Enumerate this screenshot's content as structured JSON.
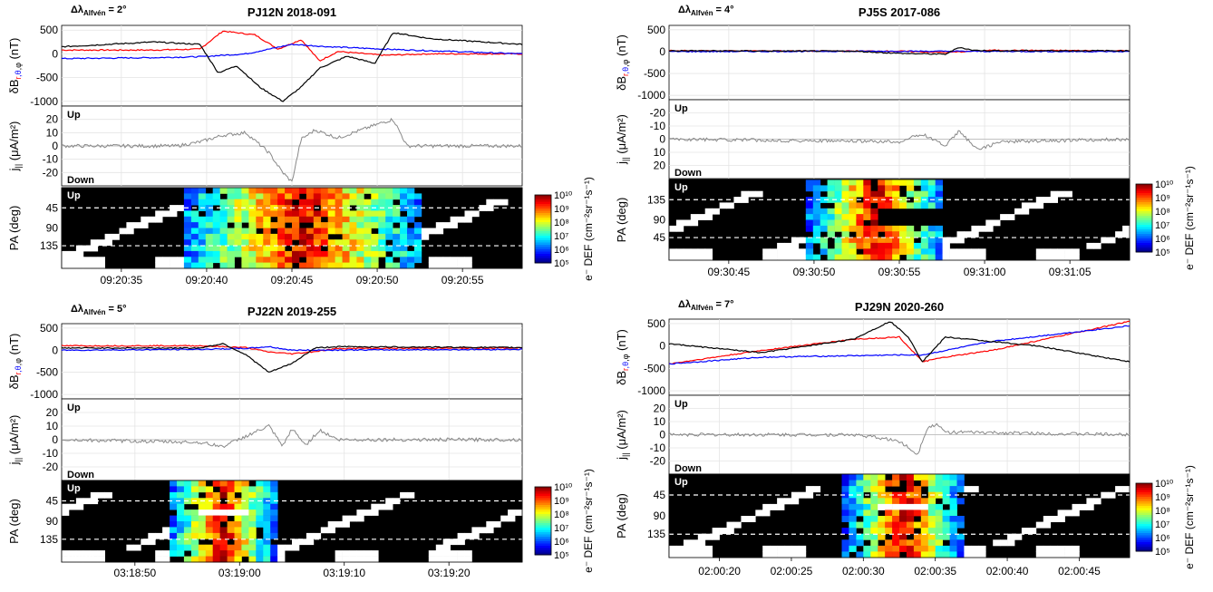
{
  "figure_labels": {
    "delta_prefix": "Δλ",
    "delta_sub": "Alfvén",
    "ylabel_db": "δB",
    "ylabel_db_unit": "(nT)",
    "ylabel_j": "j",
    "ylabel_j_unit": "(μA/m²)",
    "ylabel_pa": "PA (deg)",
    "up": "Up",
    "down": "Down",
    "colorbar_label": "e⁻ DEF (cm⁻²sr⁻¹s⁻¹)",
    "colorbar_ticks": [
      "10¹⁰",
      "10⁹",
      "10⁸",
      "10⁷",
      "10⁶",
      "10⁵"
    ]
  },
  "colors": {
    "r": "#ff0000",
    "theta": "#0000ff",
    "phi": "#000000",
    "j": "#888888"
  },
  "chart_data": [
    {
      "id": "pj12n",
      "type": "line",
      "title": "PJ12N 2018-091",
      "delta_alfven": "2°",
      "x_ticks": [
        "09:20:35",
        "09:20:40",
        "09:20:45",
        "09:20:50",
        "09:20:55"
      ],
      "db": {
        "ylim": [
          -1100,
          600
        ],
        "yticks": [
          "500",
          "0",
          "-500",
          "-1000"
        ],
        "series": [
          {
            "component": "r",
            "color": "#ff0000",
            "x": [
              0,
              0.2,
              0.3,
              0.35,
              0.42,
              0.47,
              0.52,
              0.56,
              0.6,
              0.7,
              0.8,
              1
            ],
            "values": [
              80,
              80,
              100,
              480,
              400,
              100,
              300,
              -150,
              50,
              -30,
              0,
              0
            ]
          },
          {
            "component": "theta",
            "color": "#0000ff",
            "x": [
              0,
              0.2,
              0.3,
              0.4,
              0.5,
              0.58,
              0.7,
              0.85,
              1
            ],
            "values": [
              -100,
              -80,
              -60,
              0,
              200,
              150,
              100,
              50,
              0
            ]
          },
          {
            "component": "phi",
            "color": "#000000",
            "x": [
              0,
              0.2,
              0.3,
              0.34,
              0.38,
              0.43,
              0.48,
              0.52,
              0.56,
              0.62,
              0.68,
              0.72,
              0.8,
              1
            ],
            "values": [
              150,
              250,
              200,
              -400,
              -250,
              -700,
              -1000,
              -700,
              -300,
              -50,
              -200,
              450,
              320,
              200
            ]
          }
        ]
      },
      "j": {
        "ylim": [
          -30,
          30
        ],
        "yticks": [
          "20",
          "10",
          "0",
          "-10",
          "-20"
        ],
        "x": [
          0,
          0.25,
          0.3,
          0.35,
          0.4,
          0.45,
          0.48,
          0.5,
          0.52,
          0.55,
          0.6,
          0.7,
          0.72,
          0.75,
          1
        ],
        "values": [
          0,
          0,
          3,
          8,
          10,
          -5,
          -20,
          -27,
          5,
          12,
          6,
          18,
          20,
          0,
          0
        ]
      },
      "pa": {
        "up_is_top": true,
        "yticks": [
          "45",
          "90",
          "135"
        ],
        "active_x": [
          0.29,
          0.76
        ]
      }
    },
    {
      "id": "pj5s",
      "type": "line",
      "title": "PJ5S 2017-086",
      "delta_alfven": "4°",
      "x_ticks": [
        "09:30:45",
        "09:30:50",
        "09:30:55",
        "09:31:00",
        "09:31:05"
      ],
      "db": {
        "ylim": [
          -1100,
          600
        ],
        "yticks": [
          "500",
          "0",
          "-500",
          "-1000"
        ],
        "series": [
          {
            "component": "r",
            "color": "#ff0000",
            "x": [
              0,
              0.5,
              0.6,
              0.7,
              1
            ],
            "values": [
              20,
              10,
              -20,
              30,
              20
            ]
          },
          {
            "component": "theta",
            "color": "#0000ff",
            "x": [
              0,
              0.5,
              1
            ],
            "values": [
              0,
              10,
              0
            ]
          },
          {
            "component": "phi",
            "color": "#000000",
            "x": [
              0,
              0.4,
              0.5,
              0.6,
              0.63,
              0.66,
              0.7,
              1
            ],
            "values": [
              20,
              10,
              -40,
              -60,
              100,
              30,
              20,
              20
            ]
          }
        ]
      },
      "j": {
        "ylim": [
          -30,
          30
        ],
        "yticks": [
          "-20",
          "-10",
          "0",
          "10",
          "20"
        ],
        "x": [
          0,
          0.5,
          0.55,
          0.6,
          0.63,
          0.67,
          0.72,
          1
        ],
        "values": [
          0,
          2,
          -4,
          5,
          -6,
          8,
          2,
          0
        ]
      },
      "pa": {
        "up_is_top": false,
        "yticks": [
          "135",
          "90",
          "45"
        ],
        "active_x": [
          0.32,
          0.58
        ]
      }
    },
    {
      "id": "pj22n",
      "type": "line",
      "title": "PJ22N 2019-255",
      "delta_alfven": "5°",
      "x_ticks": [
        "03:18:50",
        "03:19:00",
        "03:19:10",
        "03:19:20"
      ],
      "db": {
        "ylim": [
          -1100,
          600
        ],
        "yticks": [
          "500",
          "0",
          "-500",
          "-1000"
        ],
        "series": [
          {
            "component": "r",
            "color": "#ff0000",
            "x": [
              0,
              0.3,
              0.4,
              0.45,
              0.5,
              0.55,
              0.6,
              1
            ],
            "values": [
              100,
              100,
              60,
              -40,
              -80,
              -30,
              40,
              50
            ]
          },
          {
            "component": "theta",
            "color": "#0000ff",
            "x": [
              0,
              0.3,
              0.4,
              0.45,
              0.5,
              1
            ],
            "values": [
              0,
              20,
              40,
              80,
              0,
              20
            ]
          },
          {
            "component": "phi",
            "color": "#000000",
            "x": [
              0,
              0.3,
              0.35,
              0.4,
              0.45,
              0.5,
              0.55,
              0.6,
              1
            ],
            "values": [
              50,
              50,
              150,
              -100,
              -500,
              -300,
              50,
              80,
              60
            ]
          }
        ]
      },
      "j": {
        "ylim": [
          -30,
          30
        ],
        "yticks": [
          "20",
          "10",
          "0",
          "-10",
          "-20"
        ],
        "x": [
          0,
          0.3,
          0.35,
          0.45,
          0.48,
          0.5,
          0.53,
          0.56,
          0.6,
          1
        ],
        "values": [
          0,
          -2,
          -5,
          10,
          -5,
          8,
          -4,
          7,
          0,
          0
        ]
      },
      "pa": {
        "up_is_top": true,
        "yticks": [
          "45",
          "90",
          "135"
        ],
        "active_x": [
          0.25,
          0.45
        ]
      }
    },
    {
      "id": "pj29n",
      "type": "line",
      "title": "PJ29N 2020-260",
      "delta_alfven": "7°",
      "x_ticks": [
        "02:00:20",
        "02:00:25",
        "02:00:30",
        "02:00:35",
        "02:00:40",
        "02:00:45"
      ],
      "db": {
        "ylim": [
          -1100,
          600
        ],
        "yticks": [
          "500",
          "0",
          "-500",
          "-1000"
        ],
        "series": [
          {
            "component": "r",
            "color": "#ff0000",
            "x": [
              0,
              0.2,
              0.4,
              0.5,
              0.55,
              0.6,
              0.7,
              1
            ],
            "values": [
              -400,
              -100,
              150,
              200,
              -350,
              -250,
              -100,
              550
            ]
          },
          {
            "component": "theta",
            "color": "#0000ff",
            "x": [
              0,
              0.2,
              0.5,
              0.55,
              0.7,
              1
            ],
            "values": [
              -400,
              -250,
              -200,
              -200,
              100,
              450
            ]
          },
          {
            "component": "phi",
            "color": "#000000",
            "x": [
              0,
              0.2,
              0.4,
              0.48,
              0.52,
              0.55,
              0.6,
              0.8,
              1
            ],
            "values": [
              50,
              -150,
              150,
              550,
              200,
              -350,
              200,
              0,
              -350
            ]
          }
        ]
      },
      "j": {
        "ylim": [
          -30,
          30
        ],
        "yticks": [
          "20",
          "10",
          "0",
          "-10",
          "-20"
        ],
        "x": [
          0,
          0.4,
          0.45,
          0.5,
          0.54,
          0.56,
          0.58,
          0.6,
          1
        ],
        "values": [
          0,
          0,
          -2,
          -5,
          -15,
          5,
          8,
          2,
          0
        ]
      },
      "pa": {
        "up_is_top": true,
        "yticks": [
          "45",
          "90",
          "135"
        ],
        "active_x": [
          0.4,
          0.62
        ]
      }
    }
  ]
}
